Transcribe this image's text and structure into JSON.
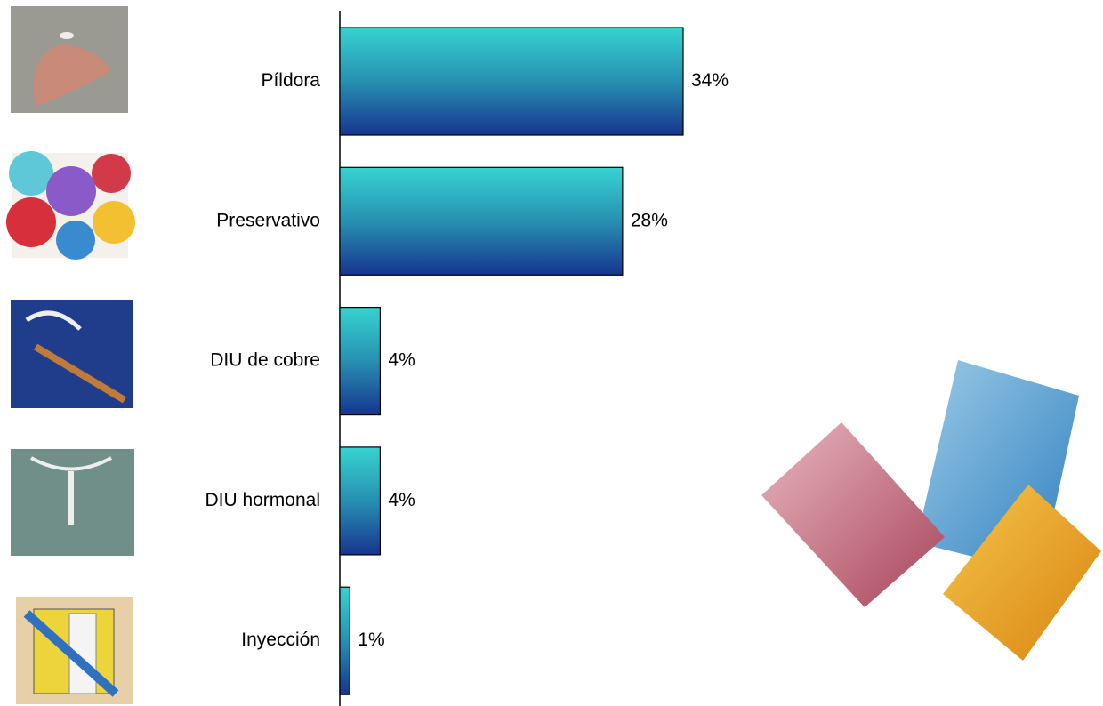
{
  "chart_data": {
    "type": "hbar",
    "categories": [
      "Píldora",
      "Preservativo",
      "DIU de cobre",
      "DIU hormonal",
      "Inyección"
    ],
    "values": [
      34,
      28,
      4,
      4,
      1
    ],
    "value_labels": [
      "34%",
      "28%",
      "4%",
      "4%",
      "1%"
    ],
    "color": "#33cccc"
  }
}
